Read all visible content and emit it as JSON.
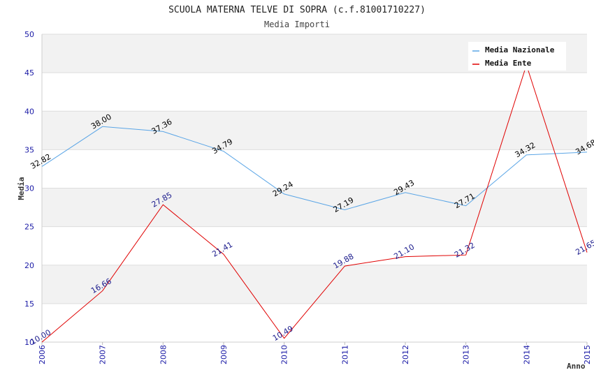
{
  "chart_data": {
    "type": "line",
    "title": "SCUOLA MATERNA TELVE DI SOPRA (c.f.81001710227)",
    "subtitle": "Media Importi",
    "xlabel": "Anno",
    "ylabel": "Media",
    "ylim": [
      10,
      50
    ],
    "yticks": [
      10,
      15,
      20,
      25,
      30,
      35,
      40,
      45,
      50
    ],
    "categories": [
      "2006",
      "2007",
      "2008",
      "2009",
      "2010",
      "2011",
      "2012",
      "2013",
      "2014",
      "2015"
    ],
    "legend_position": "top-right",
    "series": [
      {
        "name": "Media Nazionale",
        "color": "#5aa5e6",
        "label_color": "#000000",
        "values": [
          32.82,
          38.0,
          37.36,
          34.79,
          29.24,
          27.19,
          29.43,
          27.71,
          34.32,
          34.68
        ],
        "labels": [
          "32.82",
          "38.00",
          "37.36",
          "34.79",
          "29.24",
          "27.19",
          "29.43",
          "27.71",
          "34.32",
          "34.68"
        ]
      },
      {
        "name": "Media Ente",
        "color": "#e00000",
        "label_color": "#1a1a8c",
        "values": [
          10.0,
          16.66,
          27.85,
          21.41,
          10.49,
          19.88,
          21.1,
          21.32,
          46.0,
          21.65
        ],
        "labels": [
          "10.00",
          "16.66",
          "27.85",
          "21.41",
          "10.49",
          "19.88",
          "21.10",
          "21.32",
          "",
          "21.65"
        ]
      }
    ]
  }
}
